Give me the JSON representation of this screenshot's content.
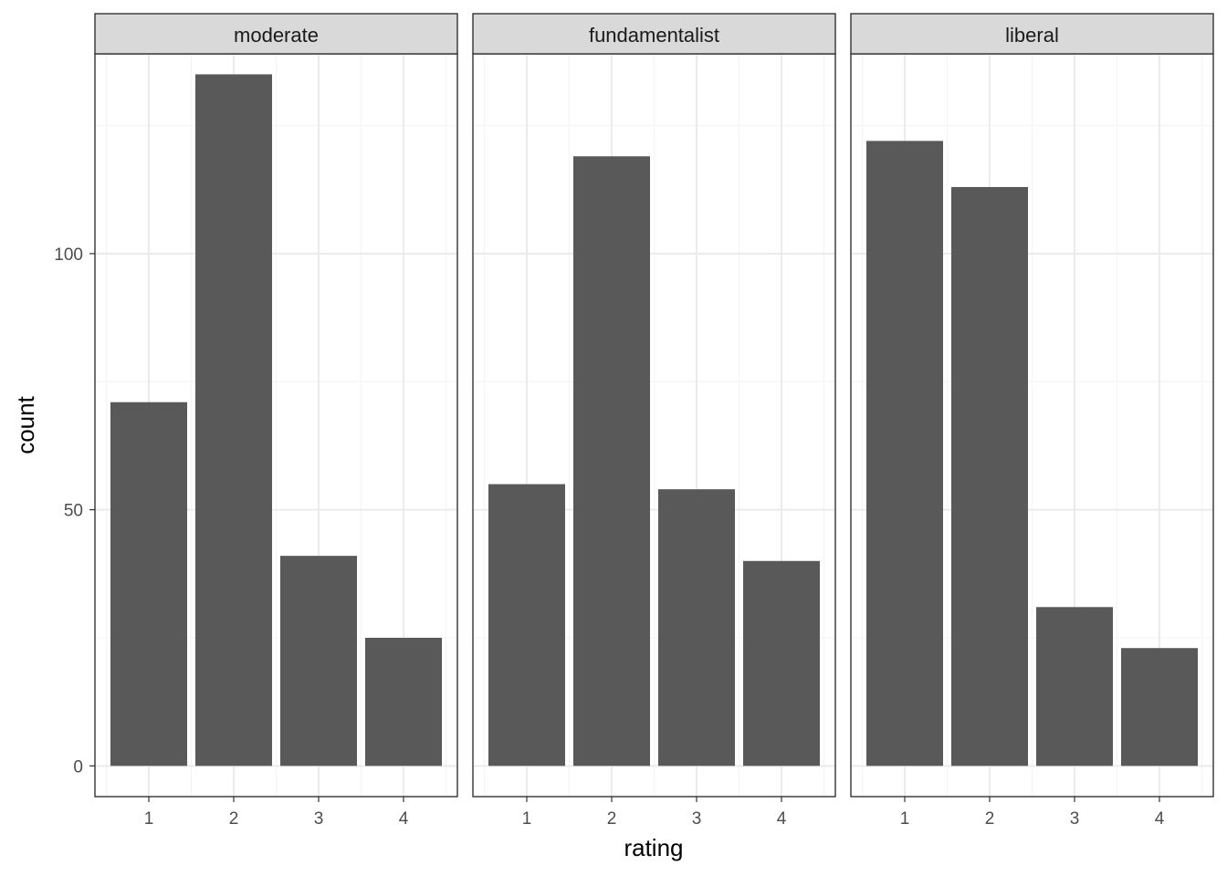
{
  "chart_data": {
    "type": "bar",
    "xlabel": "rating",
    "ylabel": "count",
    "categories": [
      "1",
      "2",
      "3",
      "4"
    ],
    "ylim": [
      -6,
      139
    ],
    "y_ticks": [
      0,
      50,
      100
    ],
    "y_tick_labels": [
      "0",
      "50",
      "100"
    ],
    "grid": true,
    "facets": [
      {
        "name": "moderate",
        "values": [
          71,
          135,
          41,
          25
        ]
      },
      {
        "name": "fundamentalist",
        "values": [
          55,
          119,
          54,
          40
        ]
      },
      {
        "name": "liberal",
        "values": [
          122,
          113,
          31,
          23
        ]
      }
    ],
    "colors": {
      "bar": "#595959",
      "strip_fill": "#d9d9d9",
      "panel_border": "#333333",
      "grid_major": "#ebebeb",
      "grid_minor": "#f5f5f5",
      "tick": "#333333"
    }
  }
}
